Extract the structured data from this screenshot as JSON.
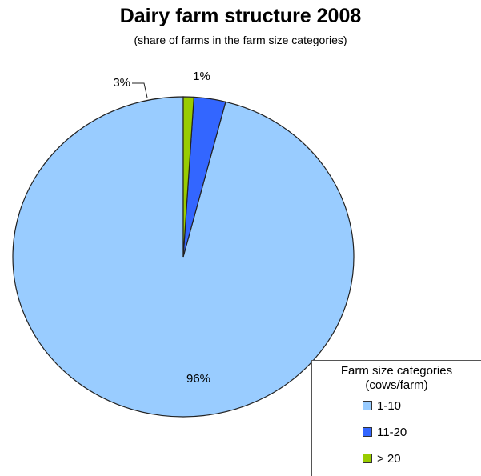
{
  "chart_data": {
    "type": "pie",
    "title": "Dairy farm structure 2008",
    "subtitle": "(share of farms in the farm size categories)",
    "legend_title": "Farm size categories",
    "legend_subtitle": "(cows/farm)",
    "legend_position": "bottom-right",
    "slices": [
      {
        "label": "1-10",
        "value": 96,
        "data_label": "96%",
        "color": "#99ccff"
      },
      {
        "label": "11-20",
        "value": 3,
        "data_label": "3%",
        "color": "#3366ff"
      },
      {
        "label": "> 20",
        "value": 1,
        "data_label": "1%",
        "color": "#99cc00"
      }
    ]
  }
}
